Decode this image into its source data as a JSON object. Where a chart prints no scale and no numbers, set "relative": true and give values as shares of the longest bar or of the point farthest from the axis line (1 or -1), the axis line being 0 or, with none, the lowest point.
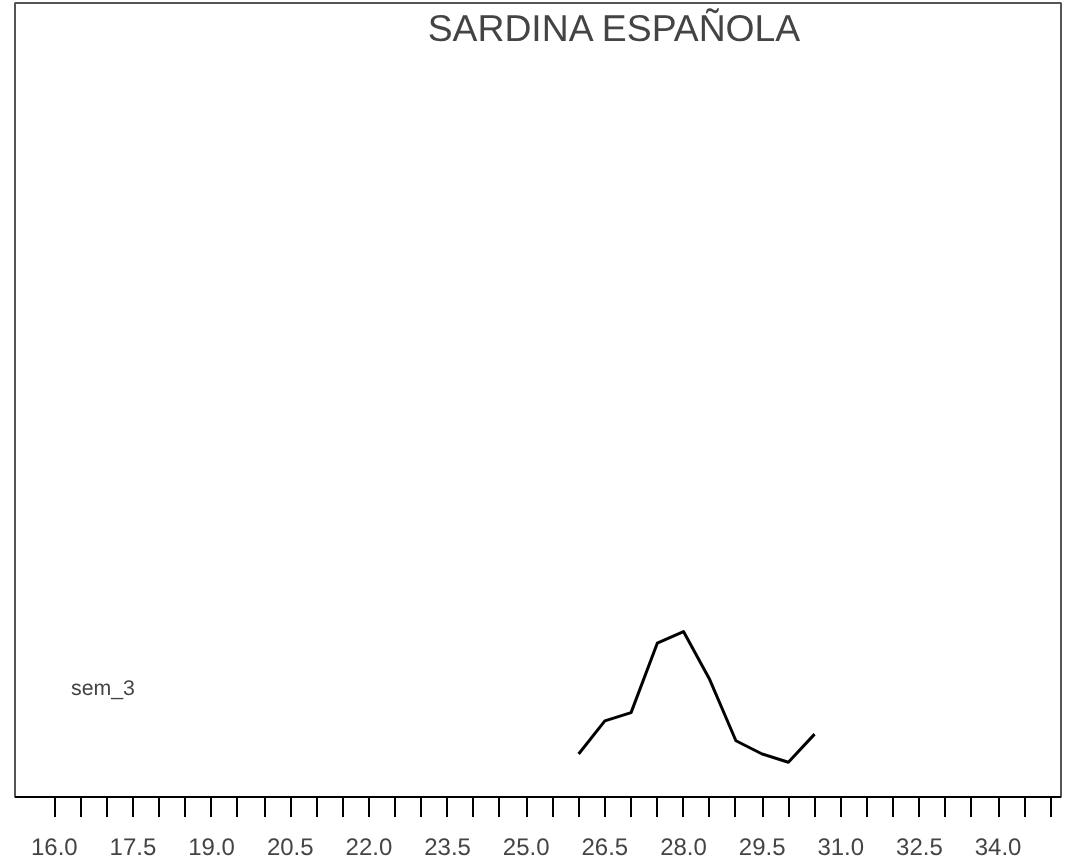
{
  "chart_data": {
    "type": "line",
    "title": "SARDINA ESPAÑOLA",
    "relative": true,
    "x": [
      26.0,
      26.5,
      27.0,
      27.5,
      28.0,
      28.5,
      29.0,
      29.5,
      30.0,
      30.5
    ],
    "series": [
      {
        "color": "#000000",
        "values": [
          0.26,
          0.46,
          0.51,
          0.93,
          1,
          0.71,
          0.34,
          0.26,
          0.21,
          0.38
        ]
      }
    ],
    "xlim": [
      15.25,
      35.2
    ],
    "xticks": [
      {
        "value": 16.0,
        "label": "16.0"
      },
      {
        "value": 16.5,
        "label": null
      },
      {
        "value": 17.0,
        "label": null
      },
      {
        "value": 17.5,
        "label": "17.5"
      },
      {
        "value": 18.0,
        "label": null
      },
      {
        "value": 18.5,
        "label": null
      },
      {
        "value": 19.0,
        "label": "19.0"
      },
      {
        "value": 19.5,
        "label": null
      },
      {
        "value": 20.0,
        "label": null
      },
      {
        "value": 20.5,
        "label": "20.5"
      },
      {
        "value": 21.0,
        "label": null
      },
      {
        "value": 21.5,
        "label": null
      },
      {
        "value": 22.0,
        "label": "22.0"
      },
      {
        "value": 22.5,
        "label": null
      },
      {
        "value": 23.0,
        "label": null
      },
      {
        "value": 23.5,
        "label": "23.5"
      },
      {
        "value": 24.0,
        "label": null
      },
      {
        "value": 24.5,
        "label": null
      },
      {
        "value": 25.0,
        "label": "25.0"
      },
      {
        "value": 25.5,
        "label": null
      },
      {
        "value": 26.0,
        "label": null
      },
      {
        "value": 26.5,
        "label": "26.5"
      },
      {
        "value": 27.0,
        "label": null
      },
      {
        "value": 27.5,
        "label": null
      },
      {
        "value": 28.0,
        "label": "28.0"
      },
      {
        "value": 28.5,
        "label": null
      },
      {
        "value": 29.0,
        "label": null
      },
      {
        "value": 29.5,
        "label": "29.5"
      },
      {
        "value": 30.0,
        "label": null
      },
      {
        "value": 30.5,
        "label": null
      },
      {
        "value": 31.0,
        "label": "31.0"
      },
      {
        "value": 31.5,
        "label": null
      },
      {
        "value": 32.0,
        "label": null
      },
      {
        "value": 32.5,
        "label": "32.5"
      },
      {
        "value": 33.0,
        "label": null
      },
      {
        "value": 33.5,
        "label": null
      },
      {
        "value": 34.0,
        "label": "34.0"
      },
      {
        "value": 34.5,
        "label": null
      },
      {
        "value": 35.0,
        "label": null
      }
    ],
    "annotations": [
      "sem_3"
    ],
    "grid": false,
    "marker": "none",
    "line_style": "solid"
  }
}
